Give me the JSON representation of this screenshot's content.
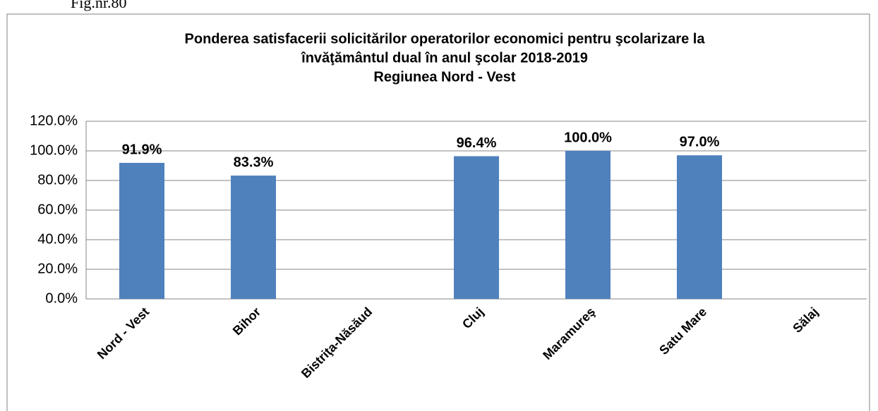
{
  "caption": "Fig.nr.80",
  "chart_data": {
    "type": "bar",
    "title": [
      "Ponderea satisfacerii solicitărilor operatorilor economici pentru şcolarizare la",
      "învăţământul dual în anul şcolar 2018-2019",
      "Regiunea Nord - Vest"
    ],
    "categories": [
      "Nord - Vest",
      "Bihor",
      "Bistriţa-Năsăud",
      "Cluj",
      "Maramureş",
      "Satu Mare",
      "Sălaj"
    ],
    "values": [
      91.9,
      83.3,
      null,
      96.4,
      100.0,
      97.0,
      null
    ],
    "value_labels": [
      "91.9%",
      "83.3%",
      null,
      "96.4%",
      "100.0%",
      "97.0%",
      null
    ],
    "color": "#4f81bd",
    "ylim": [
      0,
      120
    ],
    "yticks": [
      {
        "value": 0,
        "label": "0.0%"
      },
      {
        "value": 20,
        "label": "20.0%"
      },
      {
        "value": 40,
        "label": "40.0%"
      },
      {
        "value": 60,
        "label": "60.0%"
      },
      {
        "value": 80,
        "label": "80.0%"
      },
      {
        "value": 100,
        "label": "100.0%"
      },
      {
        "value": 120,
        "label": "120.0%"
      }
    ],
    "grid": true
  }
}
